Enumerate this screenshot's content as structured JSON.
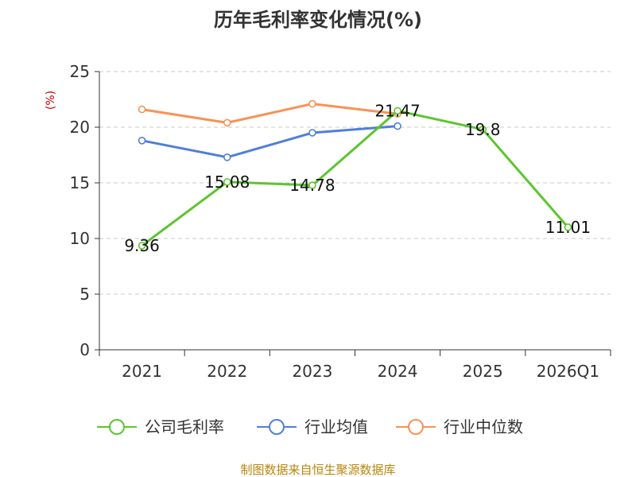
{
  "chart_data": {
    "type": "line",
    "title": "历年毛利率变化情况(%)",
    "ylabel": "(%)",
    "categories": [
      "2021",
      "2022",
      "2023",
      "2024",
      "2025",
      "2026Q1"
    ],
    "ylim": [
      0,
      25
    ],
    "yticks": [
      0,
      5,
      10,
      15,
      20,
      25
    ],
    "grid": true,
    "legend_position": "bottom",
    "series": [
      {
        "name": "公司毛利率",
        "color": "#5cc52e",
        "values": [
          9.36,
          15.08,
          14.78,
          21.47,
          19.8,
          11.01
        ],
        "labels": [
          "9.36",
          "15.08",
          "14.78",
          "21.47",
          "19.8",
          "11.01"
        ]
      },
      {
        "name": "行业均值",
        "color": "#4f7fd9",
        "values": [
          18.8,
          17.3,
          19.5,
          20.1,
          null,
          null
        ]
      },
      {
        "name": "行业中位数",
        "color": "#f79257",
        "values": [
          21.6,
          20.4,
          22.1,
          21.2,
          null,
          null
        ]
      }
    ]
  },
  "source": "制图数据来自恒生聚源数据库"
}
